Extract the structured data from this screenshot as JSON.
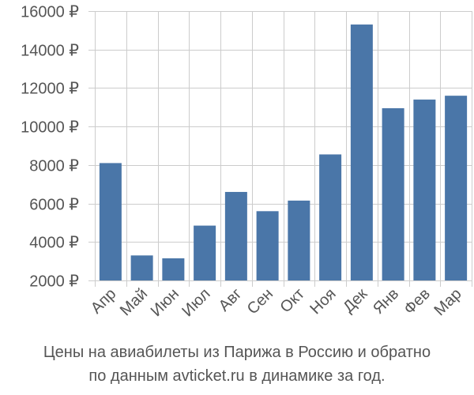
{
  "chart_data": {
    "type": "bar",
    "categories": [
      "Апр",
      "Май",
      "Июн",
      "Июл",
      "Авг",
      "Сен",
      "Окт",
      "Ноя",
      "Дек",
      "Янв",
      "Фев",
      "Мар"
    ],
    "values": [
      8100,
      3300,
      3150,
      4850,
      6600,
      5600,
      6150,
      8550,
      15300,
      10950,
      11400,
      11600
    ],
    "y_ticks": [
      2000,
      4000,
      6000,
      8000,
      10000,
      12000,
      14000,
      16000
    ],
    "y_tick_labels": [
      "2000 ₽",
      "4000 ₽",
      "6000 ₽",
      "8000 ₽",
      "10000 ₽",
      "12000 ₽",
      "14000 ₽",
      "16000 ₽"
    ],
    "ylim": [
      2000,
      16000
    ],
    "grid": true,
    "title": "",
    "xlabel": "",
    "ylabel": "",
    "bar_color": "#4a76a8",
    "grid_color": "#cccccc",
    "text_color": "#555555"
  },
  "caption": {
    "line1": "Цены на авиабилеты из Парижа в Россию и обратно",
    "line2": "по данным avticket.ru в динамике за год."
  }
}
